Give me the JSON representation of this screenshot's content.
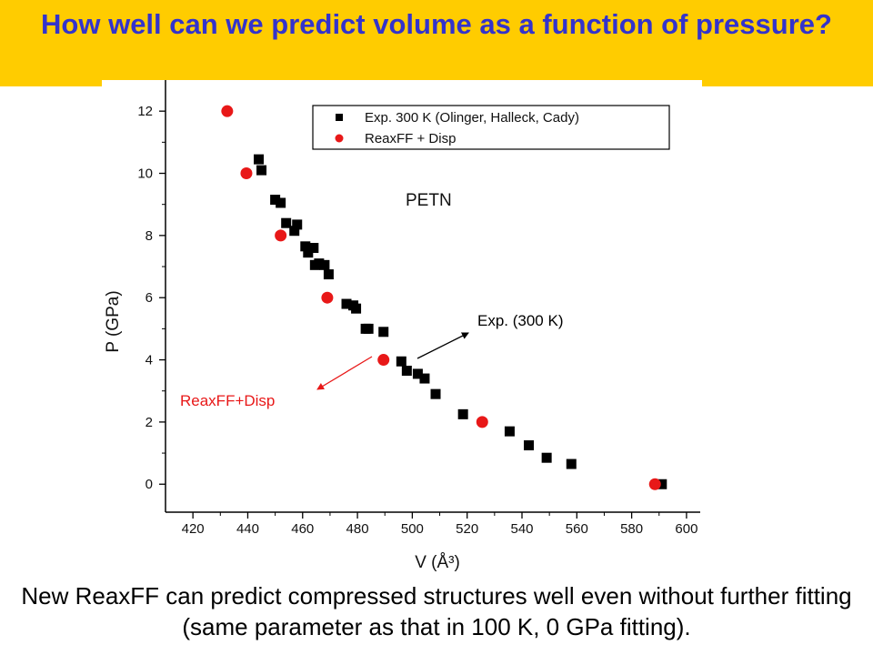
{
  "slide": {
    "title": "How well can we predict volume as a function of pressure?",
    "footer": "New ReaxFF can predict compressed structures well even without further fitting (same parameter as that in 100 K, 0 GPa fitting).",
    "title_color": "#3333CC",
    "title_bar_color": "#FFCC00"
  },
  "chart_data": {
    "type": "scatter",
    "xlabel": "V (Å³)",
    "ylabel": "P (GPa)",
    "xlim": [
      410,
      605
    ],
    "ylim": [
      -0.9,
      13
    ],
    "xticks": [
      420,
      440,
      460,
      480,
      500,
      520,
      540,
      560,
      580,
      600
    ],
    "yticks": [
      0,
      2,
      4,
      6,
      8,
      10,
      12
    ],
    "annotation_label": "PETN",
    "legend_placement": "top-right",
    "series": [
      {
        "name": "Exp. 300 K (Olinger, Halleck, Cady)",
        "marker": "square",
        "color": "#000000",
        "points": [
          [
            444,
            10.45
          ],
          [
            445,
            10.1
          ],
          [
            450,
            9.15
          ],
          [
            452,
            9.05
          ],
          [
            454,
            8.4
          ],
          [
            457,
            8.15
          ],
          [
            458,
            8.35
          ],
          [
            461,
            7.65
          ],
          [
            462,
            7.45
          ],
          [
            464,
            7.6
          ],
          [
            464.5,
            7.05
          ],
          [
            466,
            7.1
          ],
          [
            468,
            7.05
          ],
          [
            469.5,
            6.75
          ],
          [
            476,
            5.8
          ],
          [
            478.5,
            5.75
          ],
          [
            479.5,
            5.65
          ],
          [
            483,
            5.0
          ],
          [
            484,
            5.0
          ],
          [
            489.5,
            4.9
          ],
          [
            496,
            3.95
          ],
          [
            498,
            3.65
          ],
          [
            502,
            3.55
          ],
          [
            504.5,
            3.4
          ],
          [
            508.5,
            2.9
          ],
          [
            518.5,
            2.25
          ],
          [
            535.5,
            1.7
          ],
          [
            542.5,
            1.25
          ],
          [
            549,
            0.85
          ],
          [
            558,
            0.65
          ],
          [
            591,
            0.0
          ]
        ]
      },
      {
        "name": "ReaxFF + Disp",
        "marker": "circle",
        "color": "#E81818",
        "points": [
          [
            432.5,
            12.0
          ],
          [
            439.5,
            10.0
          ],
          [
            452,
            8.0
          ],
          [
            469,
            6.0
          ],
          [
            489.5,
            4.0
          ],
          [
            525.5,
            2.0
          ],
          [
            588.5,
            0.0
          ]
        ]
      }
    ],
    "annotations": [
      {
        "text": "Exp. (300 K)",
        "color": "#000000"
      },
      {
        "text": "ReaxFF+Disp",
        "color": "#E81818"
      }
    ]
  }
}
